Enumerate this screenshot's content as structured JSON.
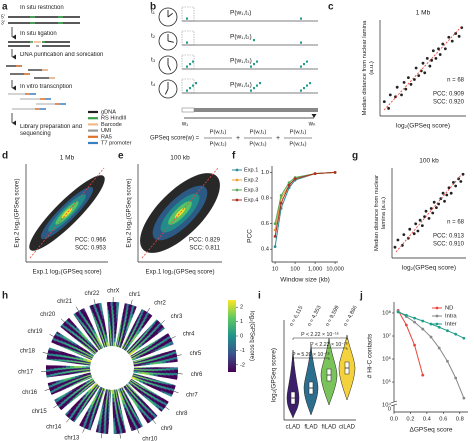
{
  "panels": {
    "a": {
      "label": "a",
      "ends": [
        "5'",
        "3'"
      ],
      "steps": [
        "In situ restriction",
        "In situ ligation",
        "DNA purification and sonication",
        "In vitro transcription",
        "Library preparation and sequencing"
      ],
      "legend": [
        {
          "name": "gDNA",
          "color": "#222222"
        },
        {
          "name": "RS HindIII",
          "color": "#3aa04a"
        },
        {
          "name": "Barcode",
          "color": "#f2b98a"
        },
        {
          "name": "UMI",
          "color": "#9a9a9a"
        },
        {
          "name": "RA5",
          "color": "#e0702c"
        },
        {
          "name": "T7 promoter",
          "color": "#3a7fc0"
        }
      ]
    },
    "b": {
      "label": "b",
      "times": [
        "t₁",
        "t₂",
        "t₃",
        "t₄"
      ],
      "probs": [
        "P(w₁,t₁)",
        "P(w₁,t₂)",
        "P(w₁,t₃)",
        "P(w₁,t₄)"
      ],
      "w_start": "w₁",
      "w_end": "wₙ",
      "formula_lhs": "GPSeq score(w) =",
      "numerators": [
        "P(w,t₁)",
        "P(w,t₁)",
        "P(w,t₁)"
      ],
      "denominators": [
        "P(w,t₂)",
        "P(w,t₃)",
        "P(w,t₄)"
      ],
      "plus": "+"
    },
    "c": {
      "label": "c",
      "title": "1 Mb",
      "ylabel": "Median distance from nuclear lamina (a.u.)",
      "xlabel": "log₂(GPSeq score)",
      "n": "n = 68",
      "pcc": "PCC: 0.909",
      "scc": "SCC: 0.920",
      "xlim": [
        0,
        1
      ],
      "ylim": [
        0,
        1
      ],
      "points": {
        "x": [
          0.05,
          0.1,
          0.12,
          0.18,
          0.2,
          0.25,
          0.28,
          0.3,
          0.33,
          0.36,
          0.4,
          0.42,
          0.45,
          0.48,
          0.5,
          0.52,
          0.55,
          0.58,
          0.6,
          0.62,
          0.65,
          0.68,
          0.7,
          0.73,
          0.76,
          0.8,
          0.84,
          0.88,
          0.92,
          0.95
        ],
        "y": [
          0.15,
          0.08,
          0.22,
          0.2,
          0.3,
          0.22,
          0.35,
          0.28,
          0.4,
          0.33,
          0.38,
          0.5,
          0.42,
          0.47,
          0.55,
          0.45,
          0.6,
          0.52,
          0.58,
          0.68,
          0.6,
          0.7,
          0.64,
          0.75,
          0.7,
          0.82,
          0.78,
          0.86,
          0.83,
          0.92
        ]
      }
    },
    "d": {
      "label": "d",
      "title": "1 Mb",
      "ylabel": "Exp.2 log₂(GPSeq score)",
      "xlabel": "Exp.1 log₂(GPSeq score)",
      "pcc": "PCC: 0.966",
      "scc": "SCC: 0.953"
    },
    "e": {
      "label": "e",
      "title": "100 kb",
      "ylabel": "Exp.2 log₂(GPSeq score)",
      "xlabel": "Exp.1 log₂(GPSeq score)",
      "pcc": "PCC: 0.829",
      "scc": "SCC: 0.811"
    },
    "f": {
      "label": "f",
      "type": "line",
      "xlabel": "Window size (kb)",
      "ylabel": "PCC",
      "log_x": true,
      "x": [
        10,
        20,
        50,
        100,
        1000,
        10000
      ],
      "xlim": [
        7,
        14000
      ],
      "xticks": [
        10,
        100,
        {
          "value": 1000,
          "label": "1,000"
        },
        {
          "value": 10000,
          "label": "10,000"
        }
      ],
      "ylim": [
        0.3,
        1.05
      ],
      "yticks": [
        0.4,
        0.6,
        0.8,
        {
          "value": 1,
          "label": "1.0"
        }
      ],
      "series": [
        {
          "name": "Exp.1",
          "color": "#2a8c9c",
          "values": [
            0.42,
            0.72,
            0.88,
            0.94,
            0.99,
            1.0
          ]
        },
        {
          "name": "Exp.2",
          "color": "#f0a030",
          "values": [
            0.55,
            0.8,
            0.9,
            0.95,
            0.99,
            1.0
          ]
        },
        {
          "name": "Exp.3",
          "color": "#5aa85a",
          "values": [
            0.6,
            0.82,
            0.92,
            0.96,
            0.99,
            1.0
          ]
        },
        {
          "name": "Exp.4",
          "color": "#b0301f",
          "values": [
            0.5,
            0.76,
            0.9,
            0.95,
            0.99,
            1.0
          ]
        }
      ]
    },
    "g": {
      "label": "g",
      "title": "100 kb",
      "ylabel": "Median distance from nuclear lamina (a.u.)",
      "xlabel": "log₂(GPSeq score)",
      "n": "n = 68",
      "pcc": "PCC: 0.913",
      "scc": "SCC: 0.910",
      "xlim": [
        0,
        1
      ],
      "ylim": [
        0,
        1
      ],
      "points": {
        "x": [
          0.04,
          0.08,
          0.14,
          0.16,
          0.22,
          0.24,
          0.3,
          0.32,
          0.35,
          0.38,
          0.41,
          0.44,
          0.46,
          0.5,
          0.53,
          0.55,
          0.57,
          0.6,
          0.63,
          0.66,
          0.69,
          0.71,
          0.74,
          0.77,
          0.8,
          0.83,
          0.86,
          0.9,
          0.93,
          0.96
        ],
        "y": [
          0.12,
          0.2,
          0.14,
          0.26,
          0.22,
          0.32,
          0.27,
          0.38,
          0.3,
          0.42,
          0.36,
          0.46,
          0.52,
          0.44,
          0.55,
          0.5,
          0.62,
          0.56,
          0.6,
          0.66,
          0.72,
          0.63,
          0.7,
          0.78,
          0.72,
          0.84,
          0.8,
          0.88,
          0.85,
          0.93
        ]
      }
    },
    "h": {
      "label": "h",
      "chromosomes": [
        "chrX",
        "chr1",
        "chr2",
        "chr3",
        "chr4",
        "chr5",
        "chr6",
        "chr7",
        "chr8",
        "chr9",
        "chr10",
        "chr11",
        "chr12",
        "chr13",
        "chr14",
        "chr15",
        "chr16",
        "chr17",
        "chr18",
        "chr19",
        "chr20",
        "chr21",
        "chr22"
      ],
      "colorbar_label": "log₂(GPSeq score)",
      "colorbar_lim": [
        -2.5,
        2.5
      ],
      "colorbar_ticks": [
        2,
        1,
        0,
        -1,
        -2
      ]
    },
    "i": {
      "label": "i",
      "ylabel": "log₂(GPSeq score)",
      "categories": [
        "cLAD",
        "fLAD",
        "fiLAD",
        "ciLAD"
      ],
      "colors": [
        "#3b1f6b",
        "#2c6e8e",
        "#7ac35a",
        "#f3d23e"
      ],
      "n_labels": [
        "n = 6,115",
        "n = 4,353",
        "n = 9,599",
        "n = 4,886"
      ],
      "p_values": [
        "P < 2.22 × 10⁻¹⁶",
        "P < 2.22 × 10⁻¹⁶",
        "P = 5.20 × 10⁻¹⁶"
      ]
    },
    "j": {
      "label": "j",
      "type": "line",
      "xlabel": "ΔGPSeq score",
      "ylabel": "# Hi-C contacts",
      "log_y": true,
      "x": [
        0.05,
        0.15,
        0.25,
        0.35,
        0.45,
        0.55,
        0.65,
        0.75,
        0.85
      ],
      "xlim": [
        0,
        0.9
      ],
      "xticks": [
        {
          "value": 0,
          "label": "0.0"
        },
        0.2,
        0.4,
        0.6,
        0.8
      ],
      "ylim": [
        5000,
        300000000
      ],
      "yticks": [
        {
          "value": 10000,
          "label": "10⁴"
        },
        {
          "value": 100000,
          "label": "10⁵"
        },
        {
          "value": 1000000,
          "label": "10⁶"
        },
        {
          "value": 10000000,
          "label": "10⁷"
        },
        {
          "value": 100000000,
          "label": "10⁸"
        }
      ],
      "zero_label": "0",
      "series": [
        {
          "name": "ND",
          "color": "#e8453c",
          "values": [
            130000000,
            30000000,
            4000000,
            200000,
            null,
            null,
            null,
            null,
            null
          ]
        },
        {
          "name": "Intra",
          "color": "#888888",
          "values": [
            120000000,
            70000000,
            40000000,
            20000000,
            9000000,
            3000000,
            800000,
            150000,
            20000
          ]
        },
        {
          "name": "Inter",
          "color": "#1f9e89",
          "values": [
            110000000,
            80000000,
            60000000,
            45000000,
            33000000,
            24000000,
            17000000,
            12000000,
            8000000
          ]
        }
      ]
    }
  }
}
